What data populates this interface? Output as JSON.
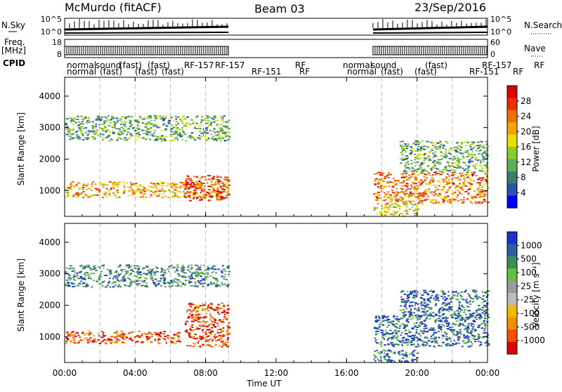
{
  "header": {
    "station": "McMurdo (fitACF)",
    "beam": "Beam 03",
    "date": "23/Sep/2016"
  },
  "strip_labels": {
    "nsky": "N.Sky",
    "freq_line1": "Freq.",
    "freq_line2": "[MHz]",
    "cpid": "CPID",
    "nsearch": "N.Search",
    "nave": "Nave"
  },
  "noise_ticks_left": [
    "10^5",
    "10^0"
  ],
  "noise_ticks_right": [
    "10^5",
    "10^0"
  ],
  "freq_ticks": [
    "18",
    "8"
  ],
  "nave_ticks": [
    "60",
    "0"
  ],
  "cpid_row1": [
    "normal",
    "sound",
    "(fast)",
    "(fast)",
    "RF-157",
    "RF-157",
    "RF",
    "normal",
    "sound",
    "(fast)",
    "RF-157",
    "RF"
  ],
  "cpid_row2": [
    "normal",
    "(fast)",
    "(fast)",
    "(fast)",
    "RF-151",
    "RF",
    "normal",
    "(fast)",
    "(fast)",
    "RF-151",
    "RF"
  ],
  "colors": {
    "power": [
      "#0000ff",
      "#2a55a5",
      "#3c7c6a",
      "#5ab05a",
      "#8ccc28",
      "#e8e000",
      "#f0a800",
      "#f07000",
      "#e83000",
      "#e00000"
    ],
    "velocity": [
      "#e00000",
      "#f05000",
      "#f09000",
      "#f0b800",
      "#bcbcbc",
      "#9a9a9a",
      "#60c040",
      "#3c8c5a",
      "#2a60a0",
      "#1e32c8"
    ]
  },
  "chart_data": [
    {
      "type": "heatmap",
      "panel": "power",
      "xlabel": "",
      "ylabel": "Slant Range [km]",
      "xlim": [
        0,
        24
      ],
      "ylim": [
        180,
        4600
      ],
      "yticks": [
        1000,
        2000,
        3000,
        4000
      ],
      "xticks": [
        "00:00",
        "04:00",
        "08:00",
        "12:00",
        "16:00",
        "20:00",
        "00:00"
      ],
      "colorbar": {
        "label": "Power [dB]",
        "range": [
          0,
          32
        ],
        "ticks": [
          "4",
          "8",
          "12",
          "16",
          "20",
          "24",
          "28"
        ]
      },
      "data_coverage_hours": [
        [
          0,
          9.3
        ],
        [
          17.5,
          24
        ]
      ],
      "echo_regions": [
        {
          "t": [
            0,
            9.3
          ],
          "range_km": [
            800,
            1300
          ],
          "power_db": 20
        },
        {
          "t": [
            6.8,
            9.3
          ],
          "range_km": [
            700,
            1500
          ],
          "power_db": 28
        },
        {
          "t": [
            0,
            9.3
          ],
          "range_km": [
            2600,
            3400
          ],
          "power_db": 12
        },
        {
          "t": [
            17.5,
            24
          ],
          "range_km": [
            600,
            1600
          ],
          "power_db": 24
        },
        {
          "t": [
            19,
            24
          ],
          "range_km": [
            1600,
            2600
          ],
          "power_db": 12
        },
        {
          "t": [
            17.5,
            20
          ],
          "range_km": [
            200,
            600
          ],
          "power_db": 16
        }
      ]
    },
    {
      "type": "heatmap",
      "panel": "velocity",
      "xlabel": "Time UT",
      "ylabel": "Slant Range [km]",
      "xlim": [
        0,
        24
      ],
      "ylim": [
        180,
        4600
      ],
      "yticks": [
        1000,
        2000,
        3000,
        4000
      ],
      "xticks": [
        "00:00",
        "04:00",
        "08:00",
        "12:00",
        "16:00",
        "20:00",
        "00:00"
      ],
      "colorbar": {
        "label": "Velocity [m s⁻¹]",
        "scale": "symlog",
        "ticks": [
          "1000",
          "500",
          "100",
          "25",
          "-25",
          "-100",
          "-500",
          "-1000"
        ]
      },
      "data_coverage_hours": [
        [
          0,
          9.3
        ],
        [
          17.5,
          24
        ]
      ],
      "echo_regions": [
        {
          "t": [
            0,
            6.5
          ],
          "range_km": [
            800,
            1200
          ],
          "velocity": -300
        },
        {
          "t": [
            6.8,
            9.3
          ],
          "range_km": [
            700,
            2100
          ],
          "velocity": -200
        },
        {
          "t": [
            0,
            9.3
          ],
          "range_km": [
            2600,
            3300
          ],
          "velocity": 25
        },
        {
          "t": [
            17.5,
            24
          ],
          "range_km": [
            700,
            1700
          ],
          "velocity": 100
        },
        {
          "t": [
            19,
            24
          ],
          "range_km": [
            1600,
            2500
          ],
          "velocity": 200
        },
        {
          "t": [
            17.5,
            20
          ],
          "range_km": [
            200,
            600
          ],
          "velocity": 300
        }
      ]
    }
  ]
}
